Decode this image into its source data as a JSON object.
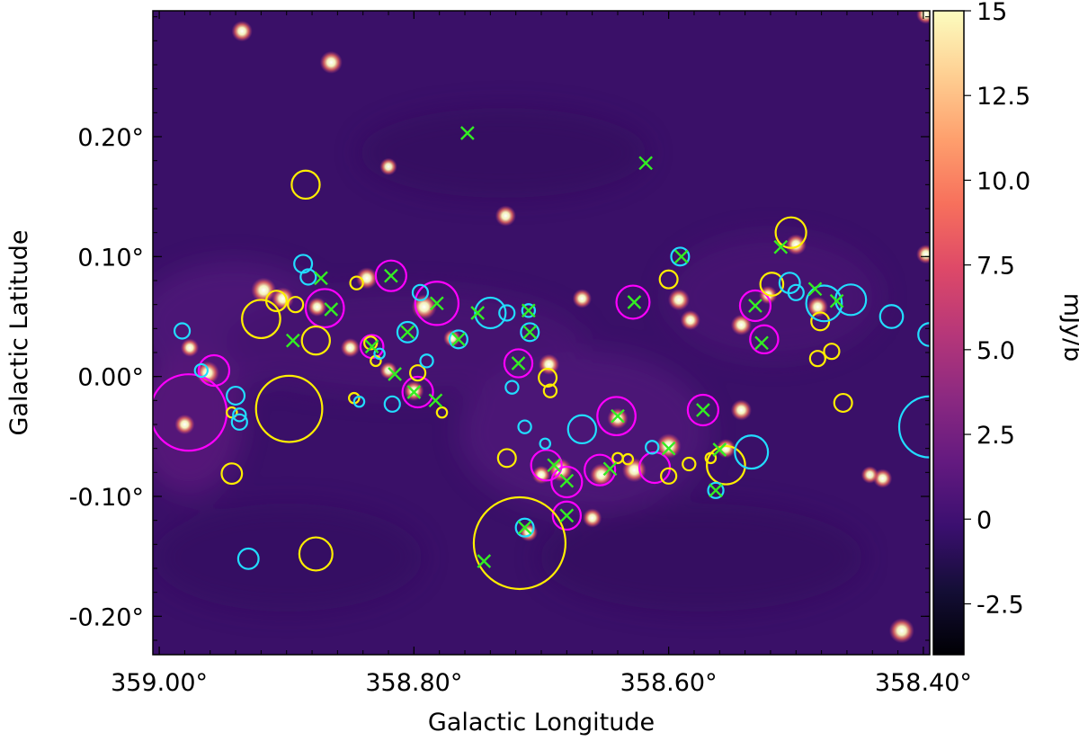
{
  "chart_data": {
    "type": "image-map",
    "xlabel": "Galactic Longitude",
    "ylabel": "Galactic Latitude",
    "x_unit": "deg",
    "y_unit": "deg",
    "xlim": [
      359.005,
      358.395
    ],
    "ylim": [
      -0.232,
      0.305
    ],
    "x_ticks": [
      359.0,
      358.8,
      358.6,
      358.4
    ],
    "x_tick_labels": [
      "359.00°",
      "358.80°",
      "358.60°",
      "358.40°"
    ],
    "y_ticks": [
      -0.2,
      -0.1,
      0.0,
      0.1,
      0.2
    ],
    "y_tick_labels": [
      "-0.20°",
      "-0.10°",
      "0.00°",
      "0.10°",
      "0.20°"
    ],
    "colorbar": {
      "label": "mJy/b",
      "colormap": "magma",
      "range": [
        -4.0,
        15.0
      ],
      "ticks": [
        -2.5,
        0,
        2.5,
        5.0,
        7.5,
        10.0,
        12.5,
        15
      ],
      "tick_labels": [
        "-2.5",
        "0",
        "2.5",
        "5.0",
        "7.5",
        "10.0",
        "12.5",
        "15"
      ]
    },
    "colors": {
      "magenta": "#ff00ff",
      "yellow": "#ffee00",
      "cyan": "#22ddff",
      "green": "#33ee22",
      "background": "#3a1068"
    },
    "bright_sources": [
      {
        "l": 358.792,
        "b": 0.058,
        "v": 15
      },
      {
        "l": 358.6,
        "b": -0.058,
        "v": 15
      },
      {
        "l": 358.627,
        "b": -0.078,
        "v": 14
      },
      {
        "l": 358.962,
        "b": 0.003,
        "v": 13
      },
      {
        "l": 358.837,
        "b": 0.082,
        "v": 11
      },
      {
        "l": 358.653,
        "b": -0.082,
        "v": 12
      },
      {
        "l": 358.685,
        "b": -0.078,
        "v": 13
      },
      {
        "l": 358.694,
        "b": 0.01,
        "v": 10
      },
      {
        "l": 358.592,
        "b": 0.064,
        "v": 11
      },
      {
        "l": 358.543,
        "b": -0.028,
        "v": 10
      },
      {
        "l": 358.483,
        "b": 0.058,
        "v": 10
      },
      {
        "l": 358.5,
        "b": 0.11,
        "v": 10
      },
      {
        "l": 358.903,
        "b": 0.065,
        "v": 12
      },
      {
        "l": 358.64,
        "b": -0.035,
        "v": 10
      },
      {
        "l": 358.8,
        "b": -0.012,
        "v": 9
      },
      {
        "l": 358.876,
        "b": 0.058,
        "v": 8
      },
      {
        "l": 358.85,
        "b": 0.024,
        "v": 8
      },
      {
        "l": 358.668,
        "b": 0.065,
        "v": 8
      },
      {
        "l": 358.976,
        "b": 0.024,
        "v": 7
      },
      {
        "l": 358.98,
        "b": -0.04,
        "v": 9
      },
      {
        "l": 358.82,
        "b": 0.005,
        "v": 6
      },
      {
        "l": 358.71,
        "b": -0.13,
        "v": 7
      },
      {
        "l": 358.77,
        "b": 0.032,
        "v": 6
      },
      {
        "l": 358.583,
        "b": 0.047,
        "v": 9
      },
      {
        "l": 358.555,
        "b": -0.06,
        "v": 8
      },
      {
        "l": 358.66,
        "b": -0.118,
        "v": 8
      },
      {
        "l": 358.865,
        "b": 0.262,
        "v": 12
      },
      {
        "l": 358.82,
        "b": 0.175,
        "v": 6
      },
      {
        "l": 358.728,
        "b": 0.134,
        "v": 10
      },
      {
        "l": 358.543,
        "b": 0.043,
        "v": 10
      },
      {
        "l": 358.417,
        "b": -0.212,
        "v": 15
      },
      {
        "l": 358.935,
        "b": 0.288,
        "v": 10
      },
      {
        "l": 358.432,
        "b": -0.085,
        "v": 8
      },
      {
        "l": 358.442,
        "b": -0.082,
        "v": 6
      },
      {
        "l": 358.398,
        "b": 0.302,
        "v": 8
      },
      {
        "l": 358.398,
        "b": 0.102,
        "v": 8
      },
      {
        "l": 358.918,
        "b": 0.072,
        "v": 15
      },
      {
        "l": 358.7,
        "b": -0.082,
        "v": 7
      },
      {
        "l": 358.522,
        "b": 0.068,
        "v": 7
      }
    ],
    "markers": {
      "magenta_circles": [
        {
          "l": 358.977,
          "b": -0.03,
          "r": 0.03
        },
        {
          "l": 358.957,
          "b": 0.005,
          "r": 0.012
        },
        {
          "l": 358.87,
          "b": 0.057,
          "r": 0.015
        },
        {
          "l": 358.833,
          "b": 0.025,
          "r": 0.009
        },
        {
          "l": 358.818,
          "b": 0.084,
          "r": 0.012
        },
        {
          "l": 358.797,
          "b": -0.013,
          "r": 0.012
        },
        {
          "l": 358.782,
          "b": 0.061,
          "r": 0.017
        },
        {
          "l": 358.718,
          "b": 0.011,
          "r": 0.011
        },
        {
          "l": 358.696,
          "b": -0.074,
          "r": 0.012
        },
        {
          "l": 358.68,
          "b": -0.088,
          "r": 0.012
        },
        {
          "l": 358.68,
          "b": -0.116,
          "r": 0.011
        },
        {
          "l": 358.654,
          "b": -0.078,
          "r": 0.012
        },
        {
          "l": 358.641,
          "b": -0.033,
          "r": 0.015
        },
        {
          "l": 358.628,
          "b": 0.062,
          "r": 0.013
        },
        {
          "l": 358.611,
          "b": -0.076,
          "r": 0.012
        },
        {
          "l": 358.573,
          "b": -0.028,
          "r": 0.012
        },
        {
          "l": 358.532,
          "b": 0.059,
          "r": 0.012
        },
        {
          "l": 358.525,
          "b": 0.031,
          "r": 0.011
        }
      ],
      "yellow_circles": [
        {
          "l": 358.885,
          "b": 0.16,
          "r": 0.011
        },
        {
          "l": 358.92,
          "b": 0.048,
          "r": 0.015
        },
        {
          "l": 358.908,
          "b": 0.063,
          "r": 0.008
        },
        {
          "l": 358.893,
          "b": 0.06,
          "r": 0.006
        },
        {
          "l": 358.877,
          "b": 0.03,
          "r": 0.011
        },
        {
          "l": 358.898,
          "b": -0.027,
          "r": 0.026
        },
        {
          "l": 358.943,
          "b": -0.081,
          "r": 0.008
        },
        {
          "l": 358.943,
          "b": -0.03,
          "r": 0.004
        },
        {
          "l": 358.845,
          "b": 0.078,
          "r": 0.005
        },
        {
          "l": 358.847,
          "b": -0.018,
          "r": 0.004
        },
        {
          "l": 358.834,
          "b": 0.028,
          "r": 0.005
        },
        {
          "l": 358.83,
          "b": 0.013,
          "r": 0.004
        },
        {
          "l": 358.797,
          "b": 0.003,
          "r": 0.006
        },
        {
          "l": 358.778,
          "b": -0.03,
          "r": 0.004
        },
        {
          "l": 358.727,
          "b": -0.068,
          "r": 0.007
        },
        {
          "l": 358.717,
          "b": -0.139,
          "r": 0.036
        },
        {
          "l": 358.695,
          "b": -0.001,
          "r": 0.007
        },
        {
          "l": 358.693,
          "b": -0.012,
          "r": 0.005
        },
        {
          "l": 358.64,
          "b": -0.068,
          "r": 0.004
        },
        {
          "l": 358.632,
          "b": -0.069,
          "r": 0.004
        },
        {
          "l": 358.6,
          "b": 0.081,
          "r": 0.007
        },
        {
          "l": 358.6,
          "b": -0.083,
          "r": 0.006
        },
        {
          "l": 358.584,
          "b": -0.073,
          "r": 0.005
        },
        {
          "l": 358.555,
          "b": -0.074,
          "r": 0.015
        },
        {
          "l": 358.519,
          "b": 0.077,
          "r": 0.009
        },
        {
          "l": 358.504,
          "b": 0.12,
          "r": 0.012
        },
        {
          "l": 358.481,
          "b": 0.046,
          "r": 0.007
        },
        {
          "l": 358.483,
          "b": 0.015,
          "r": 0.006
        },
        {
          "l": 358.472,
          "b": 0.021,
          "r": 0.006
        },
        {
          "l": 358.463,
          "b": -0.022,
          "r": 0.007
        },
        {
          "l": 358.877,
          "b": -0.148,
          "r": 0.013
        },
        {
          "l": 358.567,
          "b": -0.068,
          "r": 0.004
        }
      ],
      "cyan_circles": [
        {
          "l": 358.887,
          "b": 0.094,
          "r": 0.007
        },
        {
          "l": 358.883,
          "b": 0.083,
          "r": 0.006
        },
        {
          "l": 358.982,
          "b": 0.038,
          "r": 0.006
        },
        {
          "l": 358.967,
          "b": 0.005,
          "r": 0.005
        },
        {
          "l": 358.94,
          "b": -0.016,
          "r": 0.007
        },
        {
          "l": 358.937,
          "b": -0.032,
          "r": 0.005
        },
        {
          "l": 358.937,
          "b": -0.038,
          "r": 0.006
        },
        {
          "l": 358.843,
          "b": -0.021,
          "r": 0.004
        },
        {
          "l": 358.827,
          "b": 0.019,
          "r": 0.004
        },
        {
          "l": 358.817,
          "b": -0.023,
          "r": 0.006
        },
        {
          "l": 358.805,
          "b": 0.037,
          "r": 0.008
        },
        {
          "l": 358.795,
          "b": 0.07,
          "r": 0.006
        },
        {
          "l": 358.79,
          "b": 0.013,
          "r": 0.005
        },
        {
          "l": 358.765,
          "b": 0.031,
          "r": 0.007
        },
        {
          "l": 358.74,
          "b": 0.053,
          "r": 0.012
        },
        {
          "l": 358.727,
          "b": 0.053,
          "r": 0.006
        },
        {
          "l": 358.71,
          "b": 0.055,
          "r": 0.005
        },
        {
          "l": 358.709,
          "b": 0.037,
          "r": 0.007
        },
        {
          "l": 358.723,
          "b": -0.009,
          "r": 0.005
        },
        {
          "l": 358.713,
          "b": -0.042,
          "r": 0.005
        },
        {
          "l": 358.697,
          "b": -0.056,
          "r": 0.004
        },
        {
          "l": 358.668,
          "b": -0.044,
          "r": 0.011
        },
        {
          "l": 358.713,
          "b": -0.126,
          "r": 0.007
        },
        {
          "l": 358.613,
          "b": -0.059,
          "r": 0.005
        },
        {
          "l": 358.591,
          "b": 0.1,
          "r": 0.007
        },
        {
          "l": 358.563,
          "b": -0.095,
          "r": 0.006
        },
        {
          "l": 358.535,
          "b": -0.063,
          "r": 0.013
        },
        {
          "l": 358.505,
          "b": 0.078,
          "r": 0.008
        },
        {
          "l": 358.5,
          "b": 0.07,
          "r": 0.006
        },
        {
          "l": 358.478,
          "b": 0.061,
          "r": 0.014
        },
        {
          "l": 358.457,
          "b": 0.064,
          "r": 0.012
        },
        {
          "l": 358.425,
          "b": 0.05,
          "r": 0.009
        },
        {
          "l": 358.395,
          "b": 0.035,
          "r": 0.009
        },
        {
          "l": 358.395,
          "b": -0.042,
          "r": 0.024
        },
        {
          "l": 358.93,
          "b": -0.152,
          "r": 0.008
        }
      ],
      "green_crosses": [
        {
          "l": 358.758,
          "b": 0.203
        },
        {
          "l": 358.618,
          "b": 0.178
        },
        {
          "l": 358.512,
          "b": 0.108
        },
        {
          "l": 358.59,
          "b": 0.1
        },
        {
          "l": 358.873,
          "b": 0.082
        },
        {
          "l": 358.818,
          "b": 0.084
        },
        {
          "l": 358.782,
          "b": 0.061
        },
        {
          "l": 358.865,
          "b": 0.056
        },
        {
          "l": 358.75,
          "b": 0.053
        },
        {
          "l": 358.71,
          "b": 0.055
        },
        {
          "l": 358.627,
          "b": 0.062
        },
        {
          "l": 358.532,
          "b": 0.059
        },
        {
          "l": 358.485,
          "b": 0.073
        },
        {
          "l": 358.468,
          "b": 0.063
        },
        {
          "l": 358.805,
          "b": 0.037
        },
        {
          "l": 358.765,
          "b": 0.031
        },
        {
          "l": 358.709,
          "b": 0.037
        },
        {
          "l": 358.895,
          "b": 0.03
        },
        {
          "l": 358.833,
          "b": 0.025
        },
        {
          "l": 358.527,
          "b": 0.028
        },
        {
          "l": 358.718,
          "b": 0.011
        },
        {
          "l": 358.815,
          "b": 0.002
        },
        {
          "l": 358.8,
          "b": -0.013
        },
        {
          "l": 358.783,
          "b": -0.02
        },
        {
          "l": 358.64,
          "b": -0.033
        },
        {
          "l": 358.573,
          "b": -0.028
        },
        {
          "l": 358.6,
          "b": -0.06
        },
        {
          "l": 358.56,
          "b": -0.061
        },
        {
          "l": 358.69,
          "b": -0.074
        },
        {
          "l": 358.68,
          "b": -0.087
        },
        {
          "l": 358.646,
          "b": -0.077
        },
        {
          "l": 358.563,
          "b": -0.095
        },
        {
          "l": 358.68,
          "b": -0.116
        },
        {
          "l": 358.713,
          "b": -0.126
        },
        {
          "l": 358.745,
          "b": -0.154
        }
      ]
    }
  }
}
